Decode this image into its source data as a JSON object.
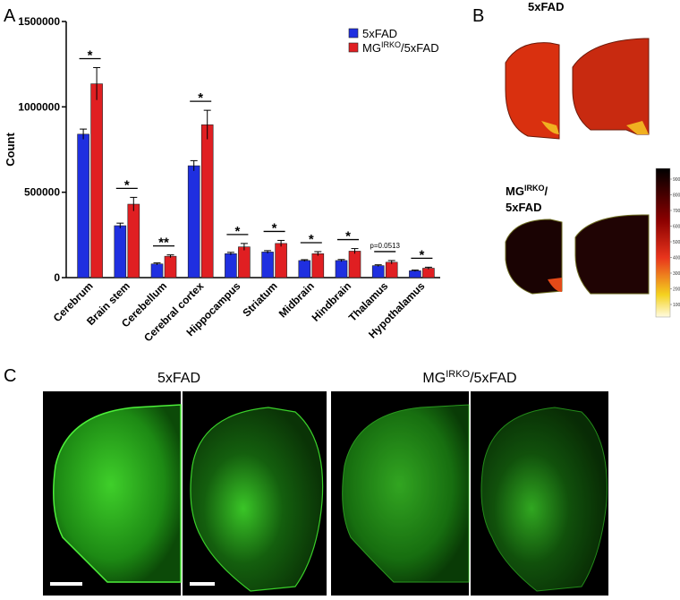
{
  "chart_data": {
    "type": "bar",
    "ylabel": "Count",
    "categories": [
      "Cerebrum",
      "Brain stem",
      "Cerebellum",
      "Cerebral cortex",
      "Hippocampus",
      "Striatum",
      "Midbrain",
      "Hindbrain",
      "Thalamus",
      "Hypothalamus"
    ],
    "series": [
      {
        "name": {
          "base": "5xFAD"
        },
        "color": "#1f2fe0",
        "values": [
          840000,
          304000,
          80000,
          655000,
          140000,
          150000,
          100000,
          100000,
          70000,
          40000
        ],
        "errors": [
          30000,
          15000,
          6000,
          30000,
          8000,
          8000,
          5000,
          6000,
          5000,
          4000
        ]
      },
      {
        "name": {
          "base": "MG",
          "sup": "IRKO",
          "rest": "/5xFAD"
        },
        "color": "#e01f22",
        "values": [
          1135000,
          430000,
          125000,
          895000,
          180000,
          200000,
          140000,
          155000,
          90000,
          55000
        ],
        "errors": [
          95000,
          40000,
          8000,
          85000,
          20000,
          18000,
          12000,
          15000,
          10000,
          6000
        ]
      }
    ],
    "annotations": [
      "*",
      "*",
      "**",
      "*",
      "*",
      "*",
      "*",
      "*",
      "p=0.0513",
      "*"
    ],
    "ylim": [
      0,
      1500000
    ],
    "yticks": [
      0,
      500000,
      1000000,
      1500000
    ],
    "legend": "upper right"
  },
  "panels": {
    "a": "A",
    "b": "B",
    "c": "C"
  },
  "panel_b": {
    "top_title": "5xFAD",
    "bottom_title": {
      "base": "MG",
      "sup": "IRKO",
      "rest": "/",
      "line2": "5xFAD"
    },
    "colorbar_ticks": [
      9000,
      8000,
      7000,
      6000,
      5000,
      4000,
      3000,
      2000,
      1000
    ]
  },
  "panel_c": {
    "left_title": "5xFAD",
    "right_title": {
      "base": "MG",
      "sup": "IRKO",
      "rest": "/5xFAD"
    }
  }
}
